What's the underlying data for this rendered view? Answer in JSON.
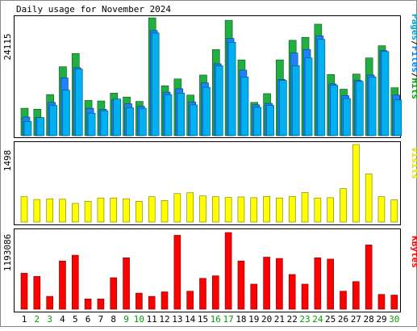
{
  "chart_data": {
    "type": "bar",
    "title": "Daily usage for November 2024",
    "categories": [
      "1",
      "2",
      "3",
      "4",
      "5",
      "6",
      "7",
      "8",
      "9",
      "10",
      "11",
      "12",
      "13",
      "14",
      "15",
      "16",
      "17",
      "18",
      "19",
      "20",
      "21",
      "22",
      "23",
      "24",
      "25",
      "26",
      "27",
      "28",
      "29",
      "30"
    ],
    "weekend_days": [
      "2",
      "3",
      "9",
      "10",
      "16",
      "17",
      "23",
      "24",
      "30"
    ],
    "panels": [
      {
        "id": "requests",
        "max_label": "24115",
        "ymax": 24115,
        "legend": [
          {
            "text": "Pages",
            "color": "#00a0c0"
          },
          {
            "text": "Files",
            "color": "#0080ff"
          },
          {
            "text": "Hits",
            "color": "#00a000"
          }
        ],
        "series": [
          {
            "name": "Hits",
            "color": "#20b040",
            "values": [
              5600,
              5400,
              8400,
              14100,
              16800,
              7200,
              7100,
              8700,
              7900,
              7000,
              24100,
              10200,
              11600,
              8300,
              12400,
              17600,
              23600,
              15500,
              6800,
              8600,
              15500,
              19500,
              20100,
              22800,
              12500,
              9500,
              12600,
              15900,
              18400,
              9800
            ]
          },
          {
            "name": "Files",
            "color": "#2080ff",
            "values": [
              3800,
              3700,
              6800,
              11800,
              13900,
              5600,
              5400,
              7300,
              6500,
              6000,
              21500,
              8900,
              9600,
              6900,
              10800,
              14700,
              19900,
              13400,
              6300,
              6600,
              11500,
              16900,
              17600,
              20400,
              10600,
              8200,
              11300,
              12400,
              17400,
              8300
            ]
          },
          {
            "name": "Pages",
            "color": "#00b0f0",
            "values": [
              2900,
              3700,
              6200,
              9300,
              13600,
              4600,
              5100,
              7500,
              5700,
              5600,
              21000,
              8400,
              8700,
              6300,
              9900,
              14300,
              19100,
              12000,
              5800,
              6200,
              11300,
              14300,
              15900,
              19700,
              10300,
              7600,
              11100,
              12000,
              17200,
              7300
            ]
          }
        ]
      },
      {
        "id": "visits",
        "max_label": "1498",
        "ymax": 1498,
        "legend": [
          {
            "text": "Visits",
            "color": "#e0e000"
          }
        ],
        "series": [
          {
            "name": "Visits",
            "color": "#ffff00",
            "values": [
              490,
              435,
              445,
              440,
              360,
              400,
              465,
              465,
              450,
              400,
              490,
              415,
              550,
              565,
              505,
              490,
              475,
              485,
              470,
              495,
              465,
              495,
              570,
              465,
              470,
              645,
              1498,
              930,
              490,
              430
            ]
          }
        ]
      },
      {
        "id": "kbytes",
        "max_label": "1193086",
        "ymax": 1193086,
        "legend": [
          {
            "text": "KBytes",
            "color": "#ff0000"
          }
        ],
        "series": [
          {
            "name": "KBytes",
            "color": "#ff0000",
            "values": [
              560000,
              510000,
              200000,
              750000,
              840000,
              160000,
              160000,
              490000,
              800000,
              250000,
              200000,
              270000,
              1150000,
              280000,
              480000,
              520000,
              1193086,
              750000,
              390000,
              810000,
              790000,
              540000,
              390000,
              800000,
              780000,
              280000,
              430000,
              1000000,
              230000,
              220000
            ]
          }
        ]
      }
    ]
  }
}
